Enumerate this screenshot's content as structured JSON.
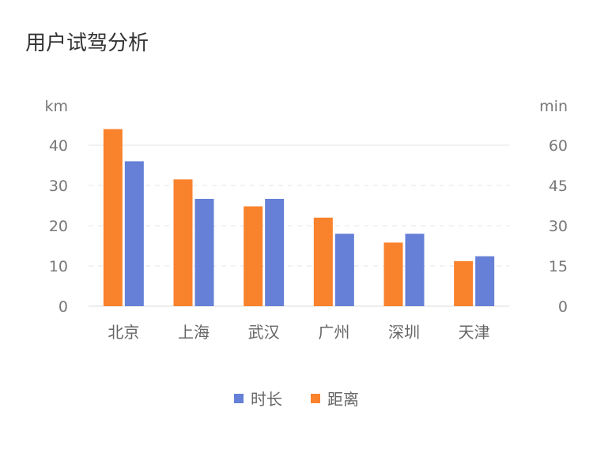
{
  "title": "用户试驾分析",
  "chart_data": {
    "type": "bar",
    "categories": [
      "北京",
      "上海",
      "武汉",
      "广州",
      "深圳",
      "天津"
    ],
    "y_left": {
      "label": "km",
      "ticks": [
        0,
        10,
        20,
        30,
        40
      ],
      "range": [
        0,
        40
      ]
    },
    "y_right": {
      "label": "min",
      "ticks": [
        0,
        15,
        30,
        45,
        60
      ],
      "range": [
        0,
        60
      ]
    },
    "series": [
      {
        "name": "距离",
        "axis": "left",
        "color": "#F9822C",
        "values": [
          44,
          31.5,
          24.8,
          22,
          15.8,
          11.2
        ]
      },
      {
        "name": "时长",
        "axis": "right",
        "color": "#6580D6",
        "values": [
          54,
          40,
          40,
          27,
          27,
          18.6
        ]
      }
    ],
    "legend": [
      {
        "name": "时长",
        "color": "#6580D6"
      },
      {
        "name": "距离",
        "color": "#F9822C"
      }
    ],
    "grid": true,
    "legend_position": "bottom-center"
  }
}
